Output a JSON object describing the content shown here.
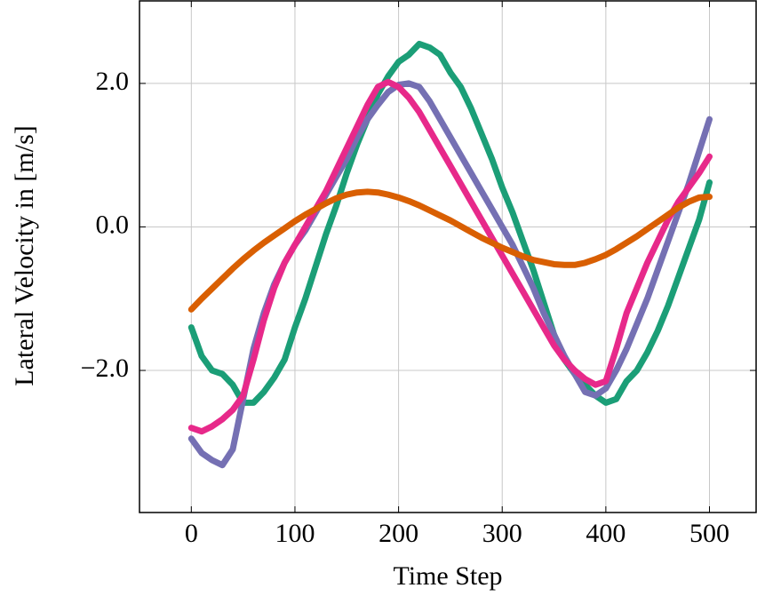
{
  "chart_data": {
    "type": "line",
    "x_label": "Time Step",
    "y_label": "Lateral Velocity in [m/s]",
    "x": [
      0,
      10,
      20,
      30,
      40,
      50,
      60,
      70,
      80,
      90,
      100,
      110,
      120,
      130,
      140,
      150,
      160,
      170,
      180,
      190,
      200,
      210,
      220,
      230,
      240,
      250,
      260,
      270,
      280,
      290,
      300,
      310,
      320,
      330,
      340,
      350,
      360,
      370,
      380,
      390,
      400,
      410,
      420,
      430,
      440,
      450,
      460,
      470,
      480,
      490,
      500
    ],
    "series": [
      {
        "color": "#1b9e77",
        "values": [
          -1.4,
          -1.8,
          -2.0,
          -2.05,
          -2.2,
          -2.45,
          -2.45,
          -2.3,
          -2.1,
          -1.85,
          -1.4,
          -1.0,
          -0.55,
          -0.1,
          0.3,
          0.75,
          1.15,
          1.5,
          1.85,
          2.1,
          2.3,
          2.4,
          2.55,
          2.5,
          2.4,
          2.15,
          1.95,
          1.65,
          1.3,
          0.95,
          0.55,
          0.2,
          -0.2,
          -0.6,
          -1.05,
          -1.5,
          -1.85,
          -2.05,
          -2.2,
          -2.35,
          -2.45,
          -2.4,
          -2.15,
          -2.0,
          -1.75,
          -1.45,
          -1.1,
          -0.7,
          -0.3,
          0.1,
          0.62
        ]
      },
      {
        "color": "#7570b3",
        "values": [
          -2.95,
          -3.15,
          -3.25,
          -3.32,
          -3.1,
          -2.4,
          -1.7,
          -1.2,
          -0.8,
          -0.5,
          -0.25,
          -0.05,
          0.2,
          0.45,
          0.7,
          0.95,
          1.25,
          1.5,
          1.7,
          1.88,
          1.98,
          2.0,
          1.95,
          1.75,
          1.5,
          1.25,
          1.0,
          0.75,
          0.5,
          0.25,
          0.0,
          -0.25,
          -0.55,
          -0.85,
          -1.2,
          -1.5,
          -1.8,
          -2.05,
          -2.3,
          -2.35,
          -2.25,
          -2.0,
          -1.7,
          -1.35,
          -1.0,
          -0.6,
          -0.2,
          0.2,
          0.6,
          1.05,
          1.5
        ]
      },
      {
        "color": "#e7298a",
        "values": [
          -2.8,
          -2.85,
          -2.78,
          -2.68,
          -2.55,
          -2.35,
          -1.85,
          -1.3,
          -0.85,
          -0.5,
          -0.25,
          0.0,
          0.25,
          0.5,
          0.8,
          1.1,
          1.4,
          1.7,
          1.95,
          2.02,
          1.95,
          1.8,
          1.6,
          1.35,
          1.1,
          0.85,
          0.6,
          0.35,
          0.1,
          -0.15,
          -0.4,
          -0.65,
          -0.9,
          -1.15,
          -1.4,
          -1.65,
          -1.85,
          -2.0,
          -2.12,
          -2.2,
          -2.15,
          -1.7,
          -1.2,
          -0.85,
          -0.5,
          -0.2,
          0.1,
          0.35,
          0.55,
          0.75,
          0.98
        ]
      },
      {
        "color": "#d95f02",
        "values": [
          -1.15,
          -1.0,
          -0.86,
          -0.72,
          -0.58,
          -0.45,
          -0.33,
          -0.22,
          -0.12,
          -0.02,
          0.08,
          0.17,
          0.25,
          0.33,
          0.4,
          0.45,
          0.48,
          0.49,
          0.48,
          0.45,
          0.41,
          0.36,
          0.3,
          0.23,
          0.16,
          0.09,
          0.01,
          -0.07,
          -0.15,
          -0.22,
          -0.29,
          -0.35,
          -0.41,
          -0.46,
          -0.49,
          -0.52,
          -0.53,
          -0.53,
          -0.5,
          -0.45,
          -0.39,
          -0.31,
          -0.22,
          -0.13,
          -0.03,
          0.07,
          0.17,
          0.27,
          0.35,
          0.41,
          0.42
        ]
      }
    ],
    "xlim": [
      -50,
      545
    ],
    "ylim": [
      -3.98,
      3.15
    ],
    "xticks": [
      0,
      100,
      200,
      300,
      400,
      500
    ],
    "yticks": [
      {
        "value": -2,
        "label": "−2.0"
      },
      {
        "value": 0,
        "label": "0.0"
      },
      {
        "value": 2,
        "label": "2.0"
      }
    ],
    "grid": true
  }
}
